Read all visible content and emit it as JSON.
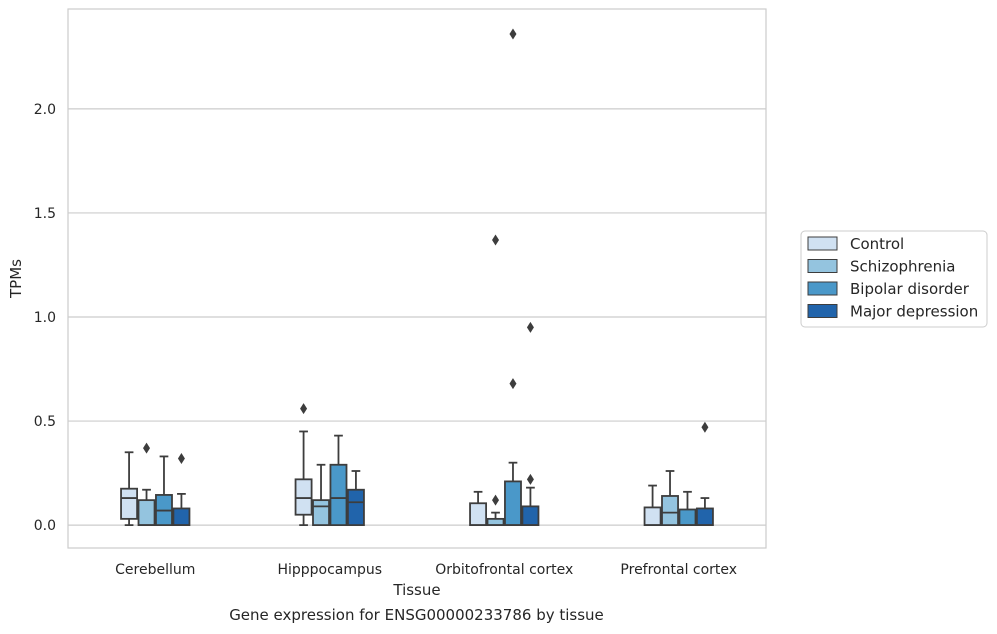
{
  "caption": "Gene expression for ENSG00000233786 by tissue",
  "chart_data": {
    "type": "box",
    "xlabel": "Tissue",
    "ylabel": "TPMs",
    "ylim": [
      -0.11,
      2.48
    ],
    "yticks": [
      "0.0",
      "0.5",
      "1.0",
      "1.5",
      "2.0"
    ],
    "ytick_values": [
      0.0,
      0.5,
      1.0,
      1.5,
      2.0
    ],
    "grid": "horizontal",
    "legend_position": "right",
    "categories": [
      "Cerebellum",
      "Hipppocampus",
      "Orbitofrontal cortex",
      "Prefrontal cortex"
    ],
    "series": [
      {
        "name": "Control",
        "color": "#d0e1f2",
        "boxes": [
          {
            "whislo": 0.0,
            "q1": 0.03,
            "med": 0.13,
            "q3": 0.175,
            "whishi": 0.35,
            "fliers": []
          },
          {
            "whislo": 0.0,
            "q1": 0.05,
            "med": 0.13,
            "q3": 0.22,
            "whishi": 0.45,
            "fliers": [
              0.56
            ]
          },
          {
            "whislo": 0.0,
            "q1": 0.0,
            "med": 0.0,
            "q3": 0.105,
            "whishi": 0.16,
            "fliers": []
          },
          {
            "whislo": 0.0,
            "q1": 0.0,
            "med": 0.0,
            "q3": 0.085,
            "whishi": 0.19,
            "fliers": []
          }
        ]
      },
      {
        "name": "Schizophrenia",
        "color": "#94c4df",
        "boxes": [
          {
            "whislo": 0.0,
            "q1": 0.0,
            "med": 0.0,
            "q3": 0.12,
            "whishi": 0.17,
            "fliers": [
              0.37
            ]
          },
          {
            "whislo": 0.0,
            "q1": 0.0,
            "med": 0.09,
            "q3": 0.12,
            "whishi": 0.29,
            "fliers": []
          },
          {
            "whislo": 0.0,
            "q1": 0.0,
            "med": 0.0,
            "q3": 0.03,
            "whishi": 0.06,
            "fliers": [
              0.12,
              1.37
            ]
          },
          {
            "whislo": 0.0,
            "q1": 0.0,
            "med": 0.06,
            "q3": 0.14,
            "whishi": 0.26,
            "fliers": []
          }
        ]
      },
      {
        "name": "Bipolar disorder",
        "color": "#4a98c9",
        "boxes": [
          {
            "whislo": 0.0,
            "q1": 0.0,
            "med": 0.07,
            "q3": 0.145,
            "whishi": 0.33,
            "fliers": []
          },
          {
            "whislo": 0.0,
            "q1": 0.0,
            "med": 0.13,
            "q3": 0.29,
            "whishi": 0.43,
            "fliers": []
          },
          {
            "whislo": 0.0,
            "q1": 0.0,
            "med": 0.0,
            "q3": 0.21,
            "whishi": 0.3,
            "fliers": [
              0.68,
              2.36
            ]
          },
          {
            "whislo": 0.0,
            "q1": 0.0,
            "med": 0.0,
            "q3": 0.075,
            "whishi": 0.16,
            "fliers": []
          }
        ]
      },
      {
        "name": "Major depression",
        "color": "#2164ab",
        "boxes": [
          {
            "whislo": 0.0,
            "q1": 0.0,
            "med": 0.0,
            "q3": 0.08,
            "whishi": 0.15,
            "fliers": [
              0.32
            ]
          },
          {
            "whislo": 0.0,
            "q1": 0.0,
            "med": 0.11,
            "q3": 0.17,
            "whishi": 0.26,
            "fliers": []
          },
          {
            "whislo": 0.0,
            "q1": 0.0,
            "med": 0.0,
            "q3": 0.09,
            "whishi": 0.18,
            "fliers": [
              0.22,
              0.95
            ]
          },
          {
            "whislo": 0.0,
            "q1": 0.0,
            "med": 0.0,
            "q3": 0.08,
            "whishi": 0.13,
            "fliers": [
              0.47
            ]
          }
        ]
      }
    ]
  }
}
